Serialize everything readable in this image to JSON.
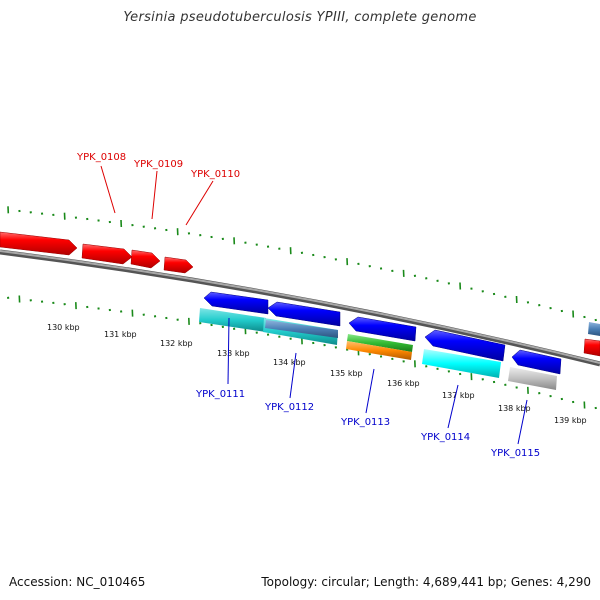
{
  "title": "Yersinia pseudotuberculosis YPIII, complete genome",
  "footer": {
    "accession": "Accession: NC_010465",
    "summary": "Topology: circular; Length: 4,689,441 bp; Genes: 4,290"
  },
  "colors": {
    "forward": "#ff0000",
    "reverse": "#0000ff",
    "tick": "#1a8a1a",
    "backbone": "#888888"
  },
  "scale_labels": [
    "130 kbp",
    "131 kbp",
    "132 kbp",
    "133 kbp",
    "134 kbp",
    "135 kbp",
    "136 kbp",
    "137 kbp",
    "138 kbp",
    "139 kbp"
  ],
  "forward_genes": [
    {
      "locus": "YPK_0108",
      "color": "#ff0000"
    },
    {
      "locus": "YPK_0109",
      "color": "#ff0000"
    },
    {
      "locus": "YPK_0110",
      "color": "#ff0000"
    }
  ],
  "reverse_genes": [
    {
      "locus": "YPK_0111",
      "color": "#0000ff"
    },
    {
      "locus": "YPK_0112",
      "color": "#0000ff"
    },
    {
      "locus": "YPK_0113",
      "color": "#0000ff"
    },
    {
      "locus": "YPK_0114",
      "color": "#0000ff"
    },
    {
      "locus": "YPK_0115",
      "color": "#0000ff"
    }
  ],
  "features": [
    {
      "name": "cyan",
      "color": "#22cccc"
    },
    {
      "name": "steel-blue",
      "color": "#4a7fb5"
    },
    {
      "name": "green",
      "color": "#33bb33"
    },
    {
      "name": "orange",
      "color": "#ff8800"
    },
    {
      "name": "light-cyan",
      "color": "#00ffff"
    },
    {
      "name": "silver",
      "color": "#b8b8b8"
    }
  ]
}
